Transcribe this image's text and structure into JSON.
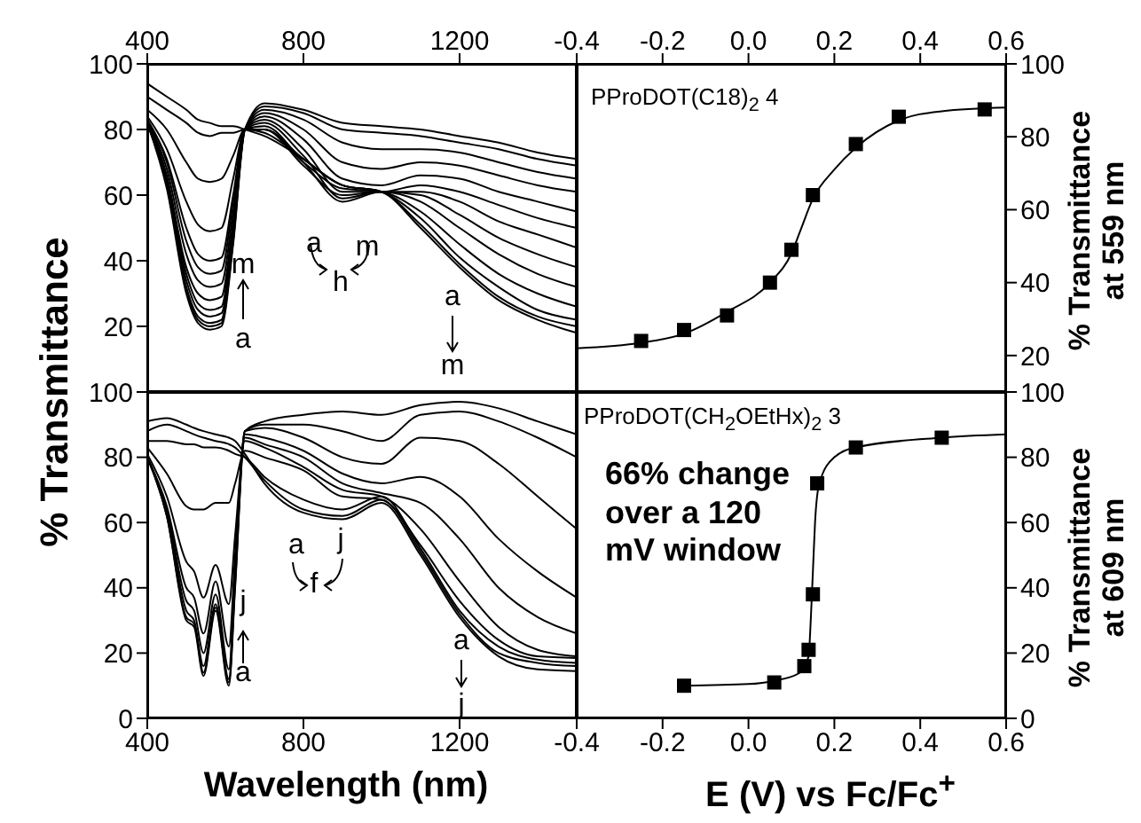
{
  "chart_data": [
    {
      "type": "line",
      "ylabel": "% Transmittance",
      "x": [
        400,
        450,
        500,
        530,
        560,
        590,
        620,
        650,
        700,
        800,
        900,
        1000,
        1100,
        1200,
        1300,
        1400,
        1500
      ],
      "xlim": [
        400,
        1500
      ],
      "xticks": [
        400,
        800,
        1200
      ],
      "ylim": [
        0,
        100
      ],
      "yticks": [
        {
          "value": 0,
          "label": null
        },
        20,
        40,
        60,
        80,
        100
      ],
      "annotations": [
        "m",
        "a",
        "a",
        "h",
        "m",
        "a",
        "m"
      ],
      "series": [
        {
          "color": "#000000",
          "values": [
            82,
            62,
            30,
            21,
            19,
            20,
            45,
            80,
            88,
            86,
            82,
            81,
            80,
            78,
            76,
            73,
            71
          ]
        },
        {
          "color": "#000000",
          "values": [
            82,
            63,
            31,
            22,
            20,
            21,
            46,
            80,
            87,
            85,
            80,
            79,
            78,
            76,
            74,
            71,
            69
          ]
        },
        {
          "color": "#000000",
          "values": [
            82,
            63,
            32,
            23,
            21,
            22,
            47,
            80,
            86,
            83,
            76,
            74,
            74,
            73,
            70,
            67,
            65
          ]
        },
        {
          "color": "#000000",
          "values": [
            82,
            64,
            34,
            25,
            23,
            24,
            48,
            80,
            85,
            80,
            70,
            68,
            70,
            69,
            66,
            63,
            61
          ]
        },
        {
          "color": "#000000",
          "values": [
            82,
            65,
            36,
            27,
            25,
            26,
            50,
            80,
            84,
            77,
            65,
            63,
            66,
            65,
            61,
            58,
            55
          ]
        },
        {
          "color": "#000000",
          "values": [
            83,
            66,
            38,
            30,
            28,
            29,
            52,
            80,
            83,
            74,
            61,
            61,
            63,
            61,
            57,
            53,
            50
          ]
        },
        {
          "color": "#000000",
          "values": [
            83,
            68,
            42,
            34,
            32,
            33,
            55,
            80,
            82,
            72,
            59,
            61,
            61,
            58,
            52,
            48,
            44
          ]
        },
        {
          "color": "#000000",
          "values": [
            83,
            70,
            46,
            38,
            36,
            37,
            58,
            80,
            81,
            70,
            58,
            61,
            60,
            54,
            47,
            42,
            38
          ]
        },
        {
          "color": "#000000",
          "values": [
            83,
            71,
            50,
            42,
            40,
            41,
            60,
            80,
            80,
            69,
            60,
            61,
            58,
            50,
            42,
            36,
            32
          ]
        },
        {
          "color": "#000000",
          "values": [
            84,
            74,
            58,
            51,
            49,
            50,
            65,
            80,
            80,
            70,
            62,
            61,
            55,
            45,
            36,
            30,
            26
          ]
        },
        {
          "color": "#000000",
          "values": [
            86,
            80,
            70,
            65,
            64,
            65,
            72,
            80,
            80,
            71,
            63,
            61,
            53,
            41,
            32,
            25,
            22
          ]
        },
        {
          "color": "#000000",
          "values": [
            90,
            86,
            82,
            79,
            78,
            79,
            79,
            80,
            79,
            71,
            63,
            61,
            51,
            39,
            29,
            23,
            20
          ]
        },
        {
          "color": "#000000",
          "values": [
            94,
            90,
            86,
            83,
            82,
            81,
            81,
            80,
            78,
            71,
            63,
            61,
            50,
            38,
            28,
            22,
            18
          ]
        }
      ]
    },
    {
      "type": "scatter",
      "ylabel": "% Transmittance at 559 nm",
      "xlim": [
        -0.4,
        0.6
      ],
      "xticks": [
        -0.4,
        -0.2,
        {
          "value": 0,
          "label": "0.0"
        },
        0.2,
        0.4,
        0.6
      ],
      "ylim": [
        10,
        100
      ],
      "yticks": [
        20,
        40,
        60,
        80,
        100
      ],
      "annotations": [
        "PProDOT(C18)$_{2}$ 4"
      ],
      "series": [
        {
          "type": "line",
          "color": "#000000",
          "x": [
            -0.4,
            -0.25,
            -0.15,
            -0.05,
            0.05,
            0.1,
            0.12,
            0.15,
            0.2,
            0.25,
            0.35,
            0.45,
            0.6
          ],
          "values": [
            22,
            23.5,
            26,
            32,
            40,
            48,
            54,
            63,
            71,
            77,
            84.5,
            87,
            88
          ]
        },
        {
          "color": "#000000",
          "marker": "square",
          "x": [
            -0.25,
            -0.15,
            -0.05,
            0.05,
            0.1,
            0.15,
            0.25,
            0.35,
            0.55
          ],
          "values": [
            24,
            27,
            31,
            40,
            49,
            64,
            78,
            85.5,
            87.5
          ]
        }
      ]
    },
    {
      "type": "line",
      "xlabel": "Wavelength (nm)",
      "x": [
        400,
        450,
        500,
        520,
        544,
        575,
        609,
        625,
        650,
        700,
        800,
        900,
        1000,
        1100,
        1200,
        1300,
        1400,
        1500
      ],
      "xlim": [
        400,
        1500
      ],
      "xticks": [
        400,
        800,
        1200
      ],
      "ylim": [
        0,
        100
      ],
      "yticks": [
        0,
        20,
        40,
        60,
        80,
        100
      ],
      "annotations": [
        "j",
        "a",
        "a",
        "f",
        "j",
        "a",
        "j"
      ],
      "series": [
        {
          "color": "#000000",
          "values": [
            80,
            62,
            30,
            28,
            13,
            33,
            10,
            40,
            88,
            91,
            93,
            94,
            93,
            96,
            97,
            95,
            91,
            87
          ]
        },
        {
          "color": "#000000",
          "values": [
            80,
            62,
            31,
            29,
            14,
            34,
            11,
            41,
            88,
            90,
            90,
            88,
            85,
            93,
            94,
            91,
            86,
            80
          ]
        },
        {
          "color": "#000000",
          "values": [
            80,
            63,
            33,
            30,
            16,
            35,
            12,
            43,
            88,
            89,
            86,
            80,
            78,
            86,
            85,
            78,
            68,
            58
          ]
        },
        {
          "color": "#000000",
          "values": [
            80,
            64,
            36,
            33,
            20,
            38,
            15,
            46,
            87,
            86,
            82,
            75,
            72,
            74,
            68,
            55,
            45,
            37
          ]
        },
        {
          "color": "#000000",
          "values": [
            80,
            65,
            40,
            37,
            26,
            42,
            22,
            50,
            86,
            84,
            80,
            72,
            69,
            66,
            55,
            40,
            31,
            26
          ]
        },
        {
          "color": "#000000",
          "values": [
            81,
            68,
            48,
            45,
            37,
            47,
            35,
            56,
            85,
            83,
            77,
            70,
            68,
            58,
            42,
            28,
            21,
            19
          ]
        },
        {
          "color": "#000000",
          "values": [
            83,
            75,
            65,
            64,
            64,
            66,
            66,
            72,
            82,
            80,
            76,
            68,
            67,
            53,
            36,
            24,
            19,
            18.5
          ]
        },
        {
          "color": "#000000",
          "values": [
            85,
            85,
            84,
            84,
            83,
            83,
            82,
            81,
            80,
            74,
            67,
            64,
            68,
            52,
            33,
            22,
            18,
            17
          ]
        },
        {
          "color": "#000000",
          "values": [
            88,
            90,
            88,
            87,
            86,
            85,
            84,
            83,
            80,
            73,
            64,
            62,
            67,
            51,
            32,
            20,
            17,
            16
          ]
        },
        {
          "color": "#000000",
          "values": [
            91,
            92,
            90,
            89,
            88,
            87,
            86,
            85,
            81,
            72,
            63,
            61,
            66,
            50,
            31,
            19,
            15,
            14.5
          ]
        }
      ]
    },
    {
      "type": "scatter",
      "xlabel": "E (V) vs Fc/Fc$^{+}$",
      "ylabel": "% Transmittance at 609 nm",
      "xlim": [
        -0.4,
        0.6
      ],
      "xticks": [
        -0.4,
        -0.2,
        {
          "value": 0,
          "label": "0.0"
        },
        0.2,
        0.4,
        0.6
      ],
      "ylim": [
        0,
        100
      ],
      "yticks": [
        0,
        20,
        40,
        60,
        80,
        100
      ],
      "annotations": [
        "PProDOT(CH$_{2}$OEtHx)$_{2}$ 3",
        "66% change over a 120 mV window"
      ],
      "series": [
        {
          "type": "line",
          "color": "#000000",
          "x": [
            -0.15,
            0,
            0.06,
            0.12,
            0.14,
            0.145,
            0.15,
            0.155,
            0.165,
            0.2,
            0.25,
            0.45,
            0.6
          ],
          "values": [
            10,
            10.5,
            11.5,
            14,
            19,
            30,
            45,
            60,
            72,
            80,
            83,
            86,
            87
          ]
        },
        {
          "color": "#000000",
          "marker": "square",
          "x": [
            -0.15,
            0.06,
            0.13,
            0.14,
            0.15,
            0.16,
            0.25,
            0.45
          ],
          "values": [
            10,
            11,
            16,
            21,
            38,
            72,
            83,
            86
          ]
        }
      ]
    }
  ]
}
